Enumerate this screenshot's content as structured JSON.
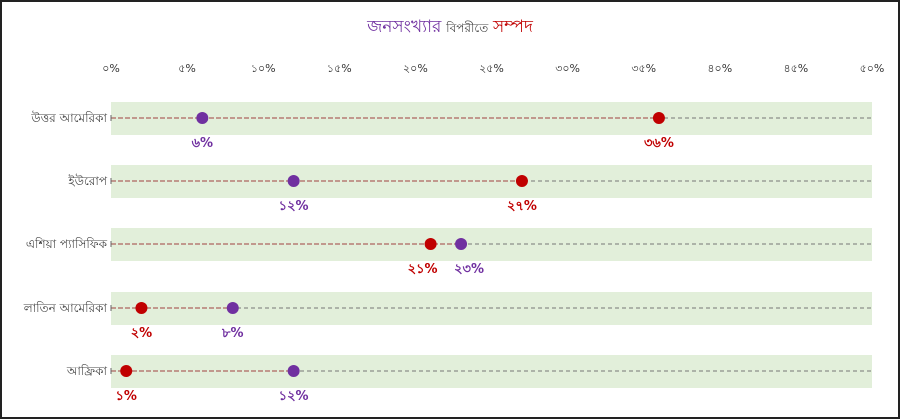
{
  "chart_data": {
    "type": "dot-plot",
    "title": {
      "part1": "জনসংখ্যার",
      "part2": "বিপরীতে",
      "part3": "সম্পদ"
    },
    "x_ticks": [
      "০%",
      "৫%",
      "১০%",
      "১৫%",
      "২০%",
      "২৫%",
      "৩০%",
      "৩৫%",
      "৪০%",
      "৪৫%",
      "৫০%"
    ],
    "xlim": [
      0,
      50
    ],
    "categories": [
      "উত্তর আমেরিকা",
      "ইউরোপ",
      "এশিয়া প্যাসিফিক",
      "লাতিন আমেরিকা",
      "আফ্রিকা"
    ],
    "series": [
      {
        "name": "জনসংখ্যা",
        "color": "#7030a0",
        "values": [
          6,
          12,
          23,
          8,
          12
        ],
        "labels": [
          "৬%",
          "১২%",
          "২৩%",
          "৮%",
          "১২%"
        ]
      },
      {
        "name": "সম্পদ",
        "color": "#c00000",
        "values": [
          36,
          27,
          21,
          2,
          1
        ],
        "labels": [
          "৩৬%",
          "২৭%",
          "২১%",
          "২%",
          "১%"
        ]
      }
    ],
    "band_color": "#e2efda"
  }
}
